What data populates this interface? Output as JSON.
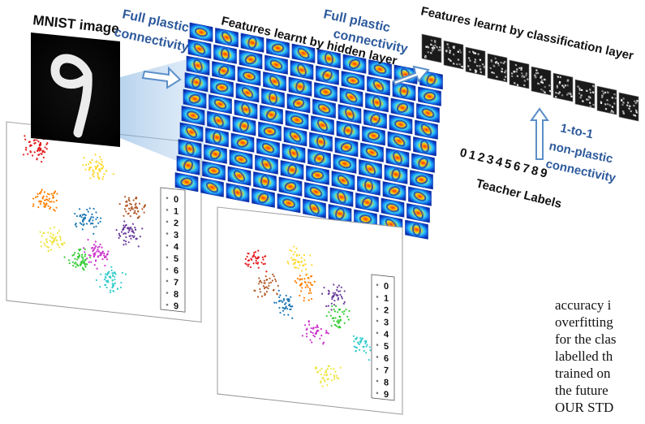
{
  "titles": {
    "mnist": "MNIST image",
    "hidden": "Features learnt by hidden layer",
    "classification": "Features learnt by classification layer"
  },
  "connections": {
    "first_line1": "Full plastic",
    "first_line2": "connectivity",
    "second_line1": "Full plastic",
    "second_line2": "connectivity",
    "third_line1": "1-to-1",
    "third_line2": "non-plastic",
    "third_line3": "connectivity"
  },
  "teacher": {
    "digits": "0123456789",
    "label": "Teacher Labels"
  },
  "legend_labels": [
    "0",
    "1",
    "2",
    "3",
    "4",
    "5",
    "6",
    "7",
    "8",
    "9"
  ],
  "cluster_colors": [
    "#e41a1c",
    "#1f78b4",
    "#ff7f00",
    "#b15928",
    "#33cc33",
    "#cc33cc",
    "#33cccc",
    "#ffd92f",
    "#6a3d9a",
    "#f0e442"
  ],
  "body_text": [
    "accuracy  i",
    "overfitting",
    "for the clas",
    "labelled th",
    "trained on",
    "the future",
    "OUR STD"
  ],
  "colors": {
    "label_blue": "#2e5a9c",
    "arrow_blue": "#5b8fc9"
  }
}
